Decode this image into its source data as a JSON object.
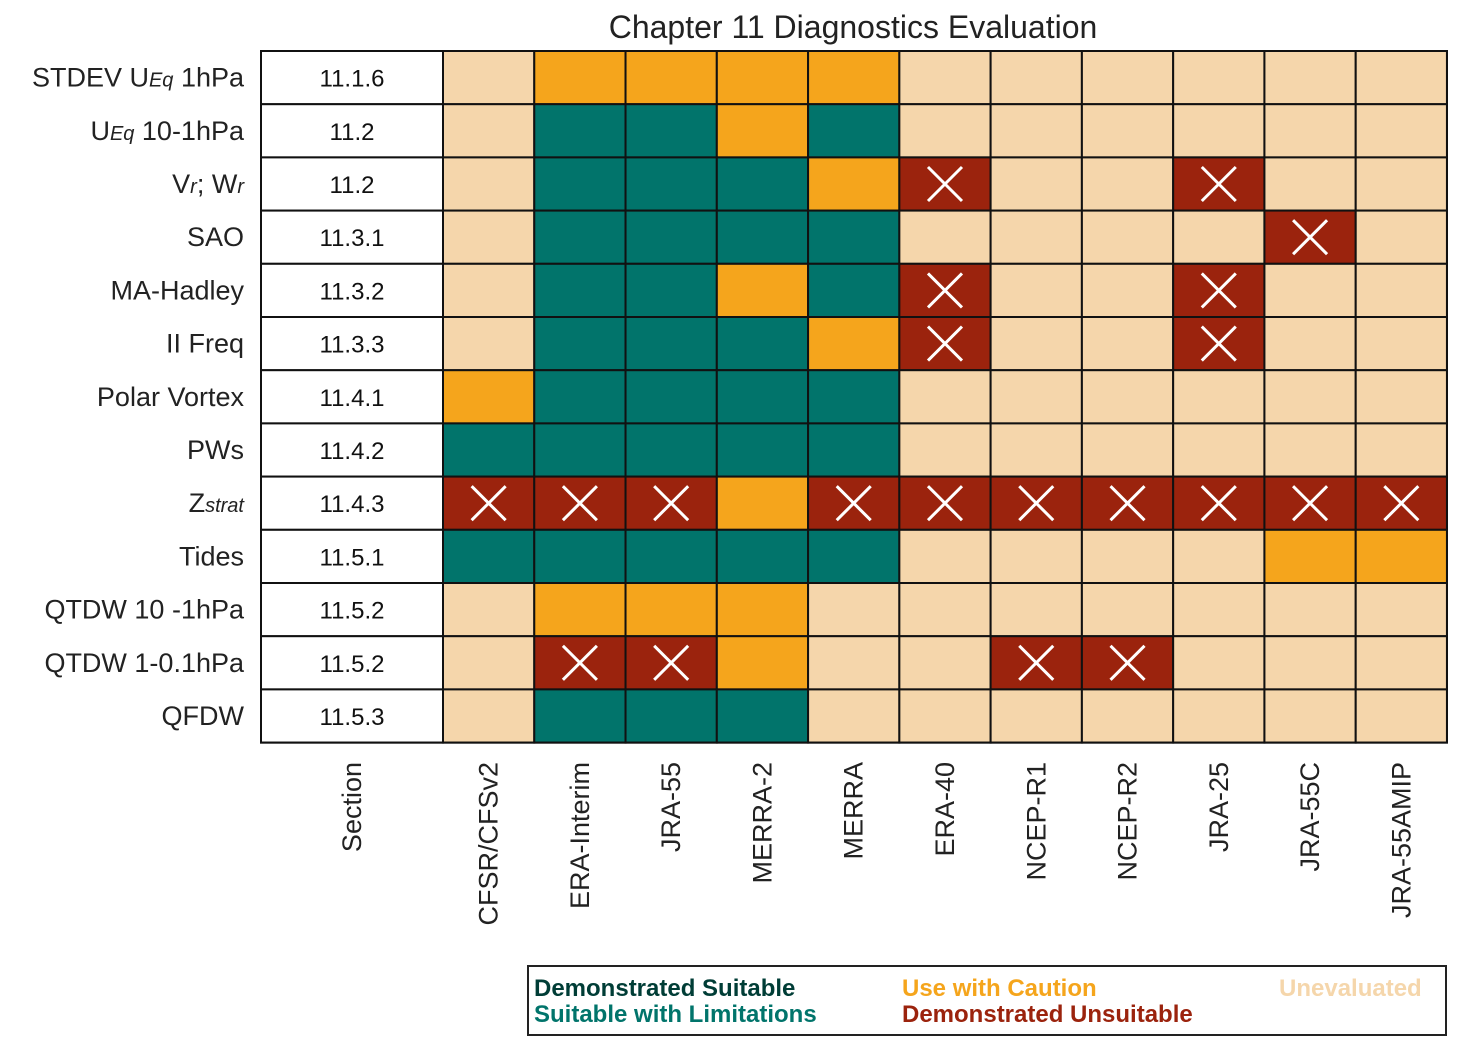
{
  "chart_data": {
    "type": "heatmap",
    "title": "Chapter 11 Diagnostics Evaluation",
    "section_header": "Section",
    "rows": [
      {
        "label": "STDEV U",
        "sub": "Eq",
        "rest": " 1hPa",
        "section": "11.1.6"
      },
      {
        "label": "U",
        "sub": "Eq",
        "rest": " 10-1hPa",
        "section": "11.2"
      },
      {
        "label": "V",
        "sub": "r",
        "rest": "; W",
        "sub2": "r",
        "section": "11.2"
      },
      {
        "label": "SAO",
        "section": "11.3.1"
      },
      {
        "label": "MA-Hadley",
        "section": "11.3.2"
      },
      {
        "label": "II Freq",
        "section": "11.3.3"
      },
      {
        "label": "Polar Vortex",
        "section": "11.4.1"
      },
      {
        "label": "PWs",
        "section": "11.4.2"
      },
      {
        "label": "Z",
        "sub": "strat",
        "section": "11.4.3"
      },
      {
        "label": "Tides",
        "section": "11.5.1"
      },
      {
        "label": "QTDW 10 -1hPa",
        "section": "11.5.2"
      },
      {
        "label": "QTDW 1-0.1hPa",
        "section": "11.5.2"
      },
      {
        "label": "QFDW",
        "section": "11.5.3"
      }
    ],
    "columns": [
      "CFSR/CFSv2",
      "ERA-Interim",
      "JRA-55",
      "MERRA-2",
      "MERRA",
      "ERA-40",
      "NCEP-R1",
      "NCEP-R2",
      "JRA-25",
      "JRA-55C",
      "JRA-55AMIP"
    ],
    "category_codes": {
      "S": "Demonstrated Suitable",
      "L": "Suitable with Limitations",
      "C": "Use with Caution",
      "X": "Demonstrated Unsuitable",
      "U": "Unevaluated"
    },
    "values": [
      [
        "U",
        "C",
        "C",
        "C",
        "C",
        "U",
        "U",
        "U",
        "U",
        "U",
        "U"
      ],
      [
        "U",
        "L",
        "L",
        "C",
        "L",
        "U",
        "U",
        "U",
        "U",
        "U",
        "U"
      ],
      [
        "U",
        "L",
        "L",
        "L",
        "C",
        "X",
        "U",
        "U",
        "X",
        "U",
        "U"
      ],
      [
        "U",
        "L",
        "L",
        "L",
        "L",
        "U",
        "U",
        "U",
        "U",
        "X",
        "U"
      ],
      [
        "U",
        "L",
        "L",
        "C",
        "L",
        "X",
        "U",
        "U",
        "X",
        "U",
        "U"
      ],
      [
        "U",
        "L",
        "L",
        "L",
        "C",
        "X",
        "U",
        "U",
        "X",
        "U",
        "U"
      ],
      [
        "C",
        "L",
        "L",
        "L",
        "L",
        "U",
        "U",
        "U",
        "U",
        "U",
        "U"
      ],
      [
        "L",
        "L",
        "L",
        "L",
        "L",
        "U",
        "U",
        "U",
        "U",
        "U",
        "U"
      ],
      [
        "X",
        "X",
        "X",
        "C",
        "X",
        "X",
        "X",
        "X",
        "X",
        "X",
        "X"
      ],
      [
        "L",
        "L",
        "L",
        "L",
        "L",
        "U",
        "U",
        "U",
        "U",
        "C",
        "C"
      ],
      [
        "U",
        "C",
        "C",
        "C",
        "U",
        "U",
        "U",
        "U",
        "U",
        "U",
        "U"
      ],
      [
        "U",
        "X",
        "X",
        "C",
        "U",
        "U",
        "X",
        "X",
        "U",
        "U",
        "U"
      ],
      [
        "U",
        "L",
        "L",
        "L",
        "U",
        "U",
        "U",
        "U",
        "U",
        "U",
        "U"
      ]
    ],
    "colors": {
      "S": "#003d36",
      "L": "#01746b",
      "C": "#f5a51c",
      "X": "#9b230d",
      "U": "#f5d6ab"
    },
    "legend": [
      {
        "code": "S",
        "label": "Demonstrated Suitable"
      },
      {
        "code": "L",
        "label": "Suitable with Limitations"
      },
      {
        "code": "C",
        "label": "Use with Caution"
      },
      {
        "code": "X",
        "label": "Demonstrated Unsuitable"
      },
      {
        "code": "U",
        "label": "Unevaluated"
      }
    ]
  }
}
